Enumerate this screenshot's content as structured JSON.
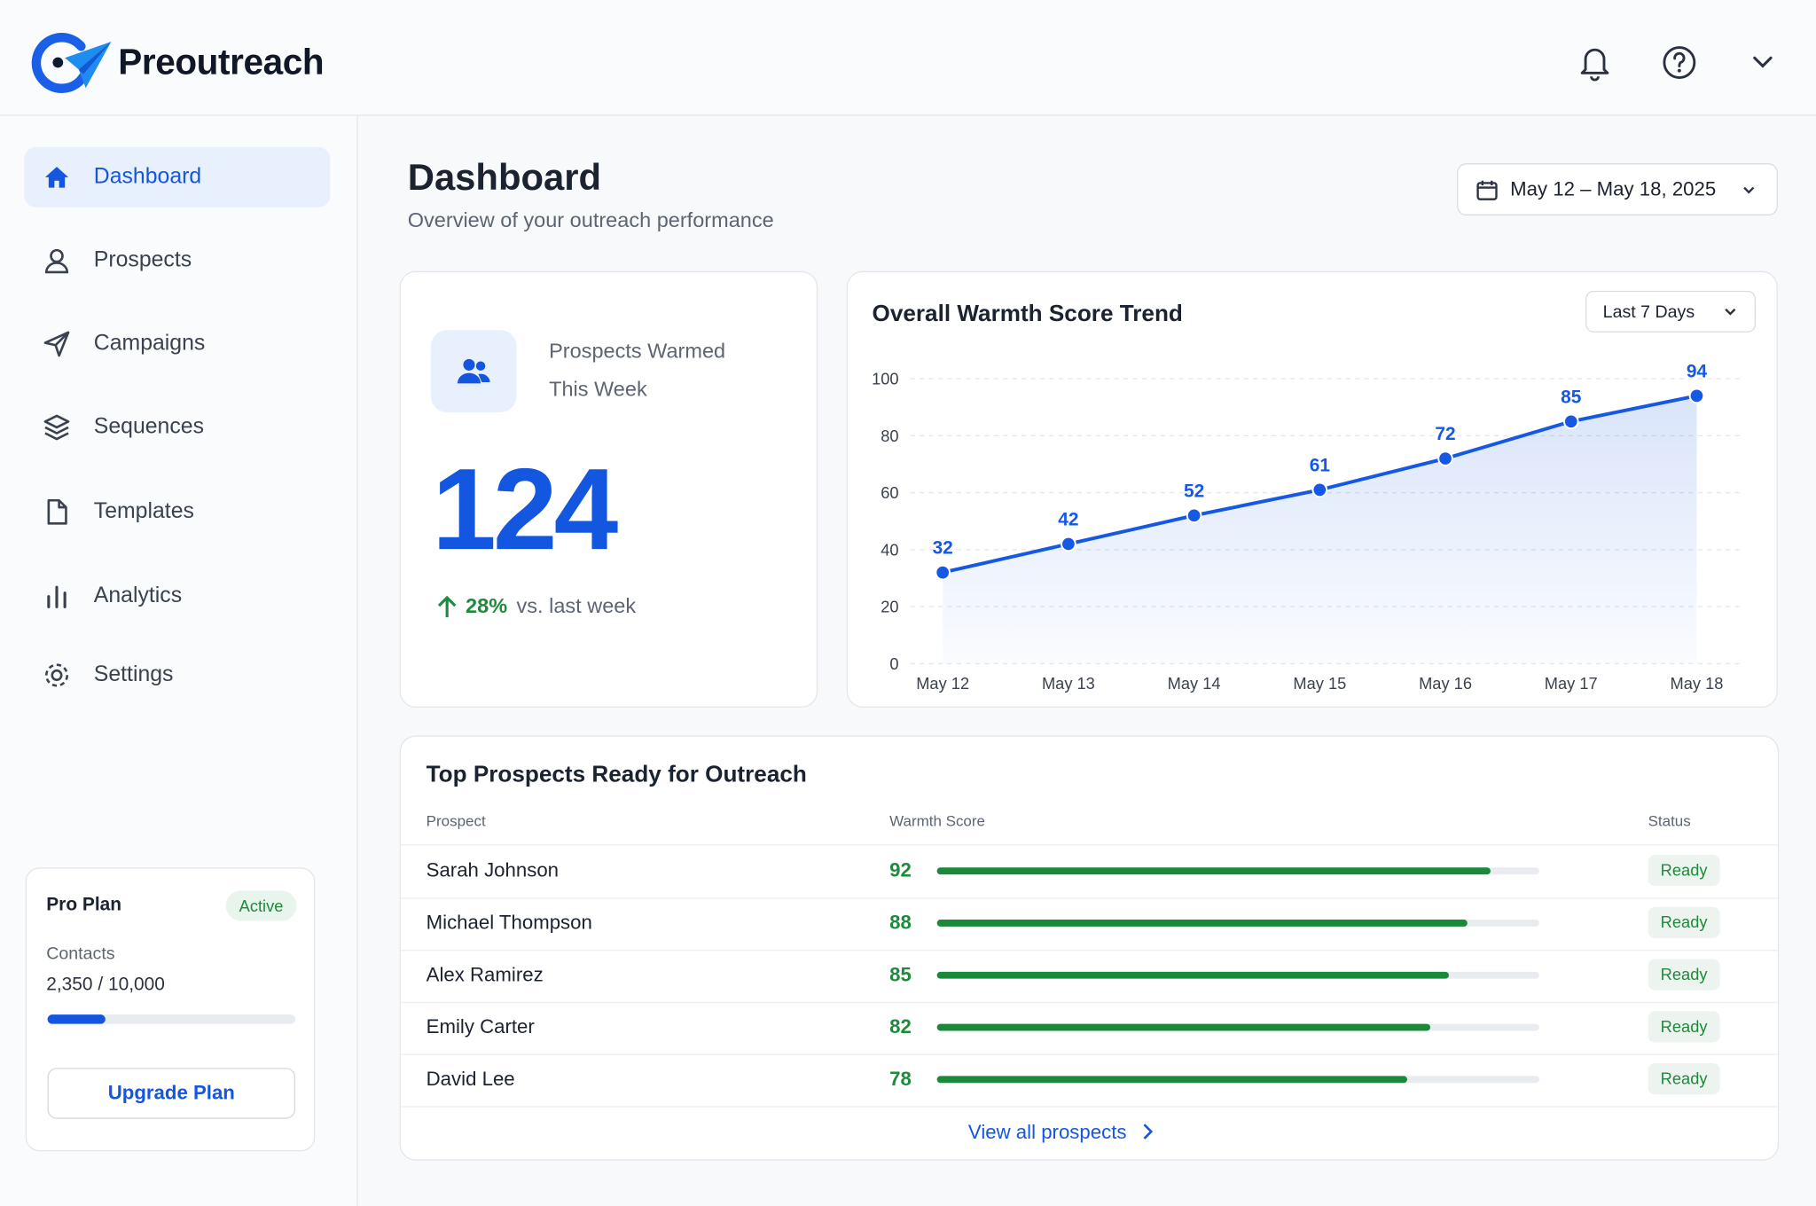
{
  "header": {
    "brand": "Preoutreach"
  },
  "nav": [
    "Dashboard",
    "Prospects",
    "Campaigns",
    "Sequences",
    "Templates",
    "Analytics",
    "Settings"
  ],
  "plan": {
    "name": "Pro Plan",
    "status": "Active",
    "contacts_label": "Contacts",
    "contacts": {
      "used": 2350,
      "limit": 10000,
      "label": "2,350 / 10,000"
    },
    "button": "Upgrade Plan"
  },
  "page": {
    "title": "Dashboard",
    "subtitle": "Overview of your outreach performance",
    "date_range": "May 12 – May 18, 2025"
  },
  "stat_card": {
    "label": "Prospects Warmed This Week",
    "value": "124",
    "change": "28%",
    "change_note": "vs. last week"
  },
  "chart_data": {
    "type": "line",
    "title": "Overall Warmth Score Trend",
    "range_selector": "Last 7 Days",
    "categories": [
      "May 12",
      "May 13",
      "May 14",
      "May 15",
      "May 16",
      "May 17",
      "May 18"
    ],
    "values": [
      32,
      42,
      52,
      61,
      72,
      85,
      94
    ],
    "color": "#1558e3",
    "ylim": [
      0,
      100
    ],
    "yticks": [
      0,
      20,
      40,
      60,
      80,
      100
    ],
    "grid": true
  },
  "table": {
    "title": "Top Prospects Ready for Outreach",
    "columns": [
      "Prospect",
      "Warmth Score",
      "Status"
    ],
    "rows": [
      {
        "name": "Sarah Johnson",
        "score": 92,
        "status": "Ready"
      },
      {
        "name": "Michael Thompson",
        "score": 88,
        "status": "Ready"
      },
      {
        "name": "Alex Ramirez",
        "score": 85,
        "status": "Ready"
      },
      {
        "name": "Emily Carter",
        "score": 82,
        "status": "Ready"
      },
      {
        "name": "David Lee",
        "score": 78,
        "status": "Ready"
      }
    ],
    "link": "View all prospects"
  }
}
